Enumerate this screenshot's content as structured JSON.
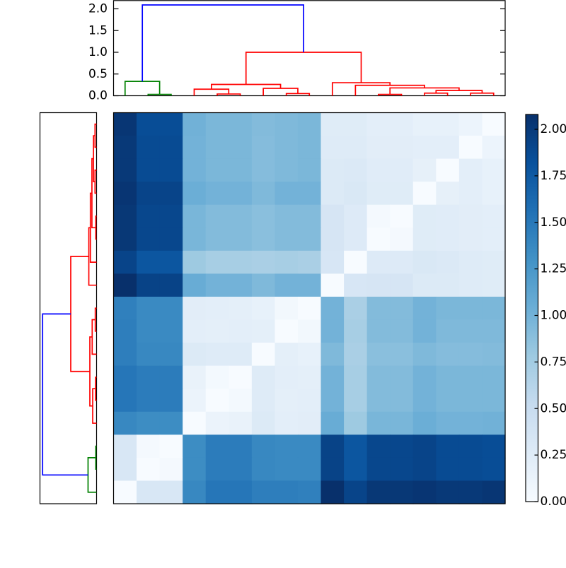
{
  "chart_data": {
    "type": "heatmap",
    "subtype": "clustermap-with-dendrograms",
    "n_items": 17,
    "vmin": 0.0,
    "vmax": 2.08,
    "grid": false,
    "legend": "colorbar-right",
    "colormap": {
      "name": "Blues",
      "anchors": [
        [
          0.0,
          [
            247,
            251,
            255
          ]
        ],
        [
          0.125,
          [
            222,
            235,
            247
          ]
        ],
        [
          0.25,
          [
            198,
            219,
            239
          ]
        ],
        [
          0.375,
          [
            158,
            202,
            225
          ]
        ],
        [
          0.5,
          [
            107,
            174,
            214
          ]
        ],
        [
          0.625,
          [
            66,
            146,
            198
          ]
        ],
        [
          0.75,
          [
            33,
            113,
            181
          ]
        ],
        [
          0.875,
          [
            8,
            81,
            156
          ]
        ],
        [
          1.0,
          [
            8,
            48,
            107
          ]
        ]
      ]
    },
    "order_note": "items 1-17 are ordered left-to-right as heatmap columns; displayed rows run top-to-bottom as items 17..1 (reversed), so the anti-diagonal is zero",
    "distance_matrix": [
      [
        0.0,
        0.33,
        0.33,
        1.38,
        1.52,
        1.52,
        1.46,
        1.46,
        1.44,
        2.08,
        1.92,
        2.02,
        2.02,
        2.04,
        2.01,
        2.01,
        2.03
      ],
      [
        0.33,
        0.0,
        0.03,
        1.34,
        1.47,
        1.47,
        1.38,
        1.36,
        1.36,
        1.93,
        1.78,
        1.9,
        1.9,
        1.92,
        1.87,
        1.87,
        1.85
      ],
      [
        0.33,
        0.03,
        0.0,
        1.34,
        1.47,
        1.47,
        1.38,
        1.36,
        1.36,
        1.93,
        1.78,
        1.9,
        1.9,
        1.92,
        1.87,
        1.87,
        1.85
      ],
      [
        1.38,
        1.34,
        1.34,
        0.0,
        0.13,
        0.15,
        0.28,
        0.21,
        0.22,
        1.06,
        0.78,
        0.97,
        0.97,
        1.04,
        1.0,
        1.0,
        1.01
      ],
      [
        1.52,
        1.47,
        1.47,
        0.13,
        0.0,
        0.04,
        0.26,
        0.2,
        0.21,
        1.0,
        0.72,
        0.92,
        0.92,
        1.0,
        0.96,
        0.96,
        0.96
      ],
      [
        1.52,
        1.47,
        1.47,
        0.15,
        0.04,
        0.0,
        0.26,
        0.21,
        0.2,
        1.0,
        0.72,
        0.92,
        0.92,
        1.0,
        0.96,
        0.96,
        0.96
      ],
      [
        1.46,
        1.38,
        1.38,
        0.28,
        0.26,
        0.26,
        0.0,
        0.2,
        0.17,
        0.94,
        0.7,
        0.88,
        0.88,
        0.94,
        0.91,
        0.91,
        0.92
      ],
      [
        1.46,
        1.36,
        1.36,
        0.21,
        0.2,
        0.21,
        0.2,
        0.0,
        0.05,
        1.0,
        0.72,
        0.92,
        0.92,
        1.0,
        0.94,
        0.94,
        0.94
      ],
      [
        1.44,
        1.36,
        1.36,
        0.22,
        0.21,
        0.2,
        0.17,
        0.05,
        0.0,
        1.0,
        0.7,
        0.92,
        0.92,
        1.0,
        0.96,
        0.96,
        0.96
      ],
      [
        2.08,
        1.93,
        1.93,
        1.06,
        1.0,
        1.0,
        0.94,
        1.0,
        1.0,
        0.0,
        0.34,
        0.35,
        0.35,
        0.28,
        0.28,
        0.26,
        0.25
      ],
      [
        1.92,
        1.78,
        1.78,
        0.78,
        0.72,
        0.72,
        0.7,
        0.72,
        0.7,
        0.34,
        0.0,
        0.27,
        0.27,
        0.31,
        0.29,
        0.26,
        0.25
      ],
      [
        2.02,
        1.9,
        1.9,
        0.97,
        0.92,
        0.92,
        0.88,
        0.92,
        0.92,
        0.35,
        0.27,
        0.0,
        0.03,
        0.25,
        0.24,
        0.22,
        0.21
      ],
      [
        2.02,
        1.9,
        1.9,
        0.97,
        0.92,
        0.92,
        0.88,
        0.92,
        0.92,
        0.35,
        0.27,
        0.03,
        0.0,
        0.25,
        0.24,
        0.22,
        0.21
      ],
      [
        2.04,
        1.92,
        1.92,
        1.04,
        1.0,
        1.0,
        0.94,
        1.0,
        1.0,
        0.28,
        0.31,
        0.25,
        0.25,
        0.0,
        0.18,
        0.21,
        0.17
      ],
      [
        2.01,
        1.87,
        1.87,
        1.0,
        0.96,
        0.96,
        0.91,
        0.94,
        0.96,
        0.28,
        0.29,
        0.24,
        0.24,
        0.18,
        0.0,
        0.21,
        0.17
      ],
      [
        2.01,
        1.87,
        1.87,
        1.0,
        0.96,
        0.96,
        0.91,
        0.94,
        0.96,
        0.26,
        0.26,
        0.22,
        0.22,
        0.21,
        0.21,
        0.0,
        0.11
      ],
      [
        2.03,
        1.85,
        1.85,
        1.01,
        0.96,
        0.96,
        0.92,
        0.94,
        0.96,
        0.25,
        0.25,
        0.21,
        0.21,
        0.17,
        0.17,
        0.11,
        0.0
      ]
    ],
    "dendrogram": {
      "colors": {
        "green": "#008000",
        "red": "#ff0000",
        "blue": "#0000ff"
      },
      "links": [
        {
          "id": "N1",
          "a": "L2",
          "b": "L3",
          "h": 0.03,
          "c": "green"
        },
        {
          "id": "N2",
          "a": "L1",
          "b": "N1",
          "h": 0.33,
          "c": "green"
        },
        {
          "id": "N3",
          "a": "L5",
          "b": "L6",
          "h": 0.04,
          "c": "red"
        },
        {
          "id": "N4",
          "a": "L4",
          "b": "N3",
          "h": 0.15,
          "c": "red"
        },
        {
          "id": "N5",
          "a": "L8",
          "b": "L9",
          "h": 0.05,
          "c": "red"
        },
        {
          "id": "N6",
          "a": "L7",
          "b": "N5",
          "h": 0.17,
          "c": "red"
        },
        {
          "id": "N7",
          "a": "N4",
          "b": "N6",
          "h": 0.26,
          "c": "red"
        },
        {
          "id": "N8",
          "a": "L12",
          "b": "L13",
          "h": 0.03,
          "c": "red"
        },
        {
          "id": "N9",
          "a": "L14",
          "b": "L15",
          "h": 0.06,
          "c": "red"
        },
        {
          "id": "N10",
          "a": "L16",
          "b": "L17",
          "h": 0.06,
          "c": "red"
        },
        {
          "id": "N11",
          "a": "N9",
          "b": "N10",
          "h": 0.12,
          "c": "red"
        },
        {
          "id": "N12",
          "a": "N8",
          "b": "N11",
          "h": 0.18,
          "c": "red"
        },
        {
          "id": "N13",
          "a": "L11",
          "b": "N12",
          "h": 0.24,
          "c": "red"
        },
        {
          "id": "N14",
          "a": "L10",
          "b": "N13",
          "h": 0.3,
          "c": "red"
        },
        {
          "id": "N15",
          "a": "N7",
          "b": "N14",
          "h": 1.0,
          "c": "red"
        },
        {
          "id": "N16",
          "a": "N2",
          "b": "N15",
          "h": 2.09,
          "c": "blue"
        }
      ]
    },
    "top_axis": {
      "tick_labels": [
        "0.0",
        "0.5",
        "1.0",
        "1.5",
        "2.0"
      ],
      "tick_values": [
        0.0,
        0.5,
        1.0,
        1.5,
        2.0
      ],
      "ylim": [
        0.0,
        2.19
      ]
    },
    "colorbar": {
      "tick_labels": [
        "0.00",
        "0.25",
        "0.50",
        "0.75",
        "1.00",
        "1.25",
        "1.50",
        "1.75",
        "2.00"
      ],
      "tick_values": [
        0.0,
        0.25,
        0.5,
        0.75,
        1.0,
        1.25,
        1.5,
        1.75,
        2.0
      ],
      "vmin": 0.0,
      "vmax": 2.08
    }
  }
}
